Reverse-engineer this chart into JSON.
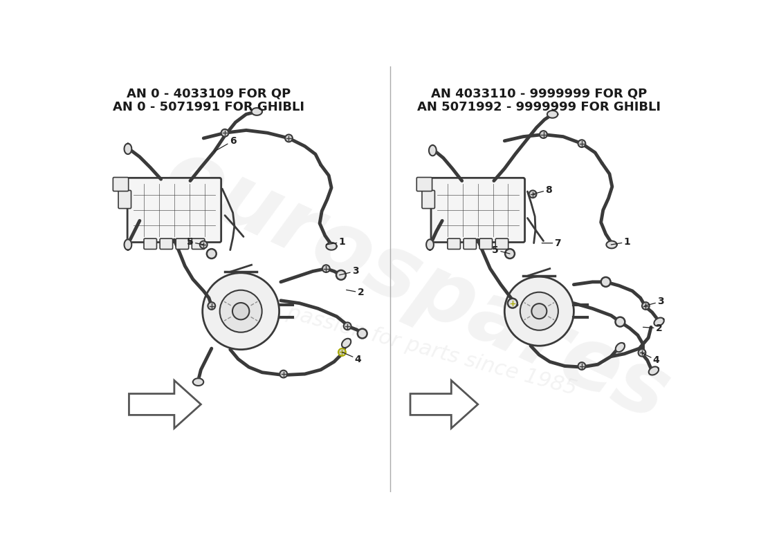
{
  "background_color": "#ffffff",
  "left_label_line1": "AN 0 - 4033109 FOR QP",
  "left_label_line2": "AN 0 - 5071991 FOR GHIBLI",
  "right_label_line1": "AN 4033110 - 9999999 FOR QP",
  "right_label_line2": "AN 5071992 - 9999999 FOR GHIBLI",
  "watermark_text": "eurospares",
  "watermark_subtext": "a passion for parts since 1985",
  "label_color": "#1a1a1a",
  "line_color": "#3a3a3a",
  "component_color": "#3a3a3a",
  "watermark_color": "#d8d8d8",
  "font_family": "DejaVu Sans"
}
